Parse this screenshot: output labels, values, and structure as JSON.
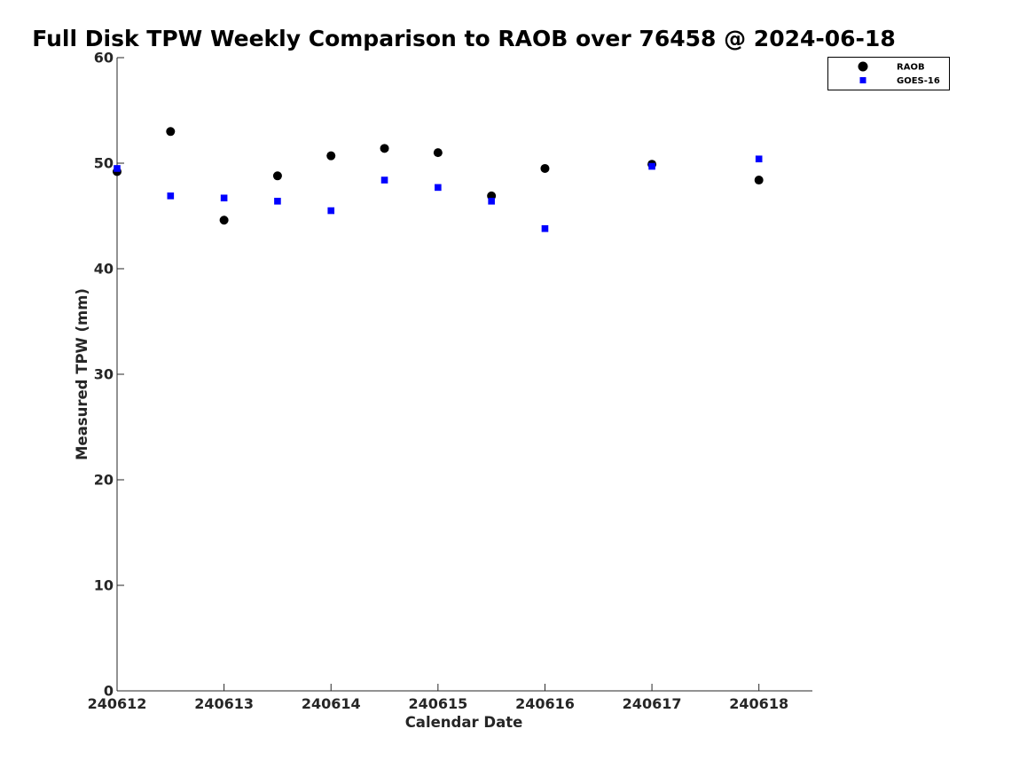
{
  "chart_data": {
    "type": "scatter",
    "title": "Full Disk TPW Weekly Comparison to RAOB over 76458 @ 2024-06-18",
    "xlabel": "Calendar Date",
    "ylabel": "Measured TPW (mm)",
    "xlim": [
      240612,
      240618.5
    ],
    "ylim": [
      0,
      60
    ],
    "x_ticks": [
      240612,
      240613,
      240614,
      240615,
      240616,
      240617,
      240618
    ],
    "x_tick_labels": [
      "240612",
      "240613",
      "240614",
      "240615",
      "240616",
      "240617",
      "240618"
    ],
    "y_ticks": [
      0,
      10,
      20,
      30,
      40,
      50,
      60
    ],
    "y_tick_labels": [
      "0",
      "10",
      "20",
      "30",
      "40",
      "50",
      "60"
    ],
    "grid": false,
    "legend_position": "top-right",
    "series": [
      {
        "name": "RAOB",
        "marker": "circle",
        "color": "#000000",
        "points": [
          {
            "x": 240612.0,
            "y": 49.2
          },
          {
            "x": 240612.5,
            "y": 53.0
          },
          {
            "x": 240613.0,
            "y": 44.6
          },
          {
            "x": 240613.5,
            "y": 48.8
          },
          {
            "x": 240614.0,
            "y": 50.7
          },
          {
            "x": 240614.5,
            "y": 51.4
          },
          {
            "x": 240615.0,
            "y": 51.0
          },
          {
            "x": 240615.5,
            "y": 46.9
          },
          {
            "x": 240616.0,
            "y": 49.5
          },
          {
            "x": 240617.0,
            "y": 49.9
          },
          {
            "x": 240618.0,
            "y": 48.4
          }
        ]
      },
      {
        "name": "GOES-16",
        "marker": "square",
        "color": "#0000ff",
        "points": [
          {
            "x": 240612.0,
            "y": 49.5
          },
          {
            "x": 240612.5,
            "y": 46.9
          },
          {
            "x": 240613.0,
            "y": 46.7
          },
          {
            "x": 240613.5,
            "y": 46.4
          },
          {
            "x": 240614.0,
            "y": 45.5
          },
          {
            "x": 240614.5,
            "y": 48.4
          },
          {
            "x": 240615.0,
            "y": 47.7
          },
          {
            "x": 240615.5,
            "y": 46.4
          },
          {
            "x": 240616.0,
            "y": 43.8
          },
          {
            "x": 240617.0,
            "y": 49.7
          },
          {
            "x": 240618.0,
            "y": 50.4
          }
        ]
      }
    ]
  }
}
